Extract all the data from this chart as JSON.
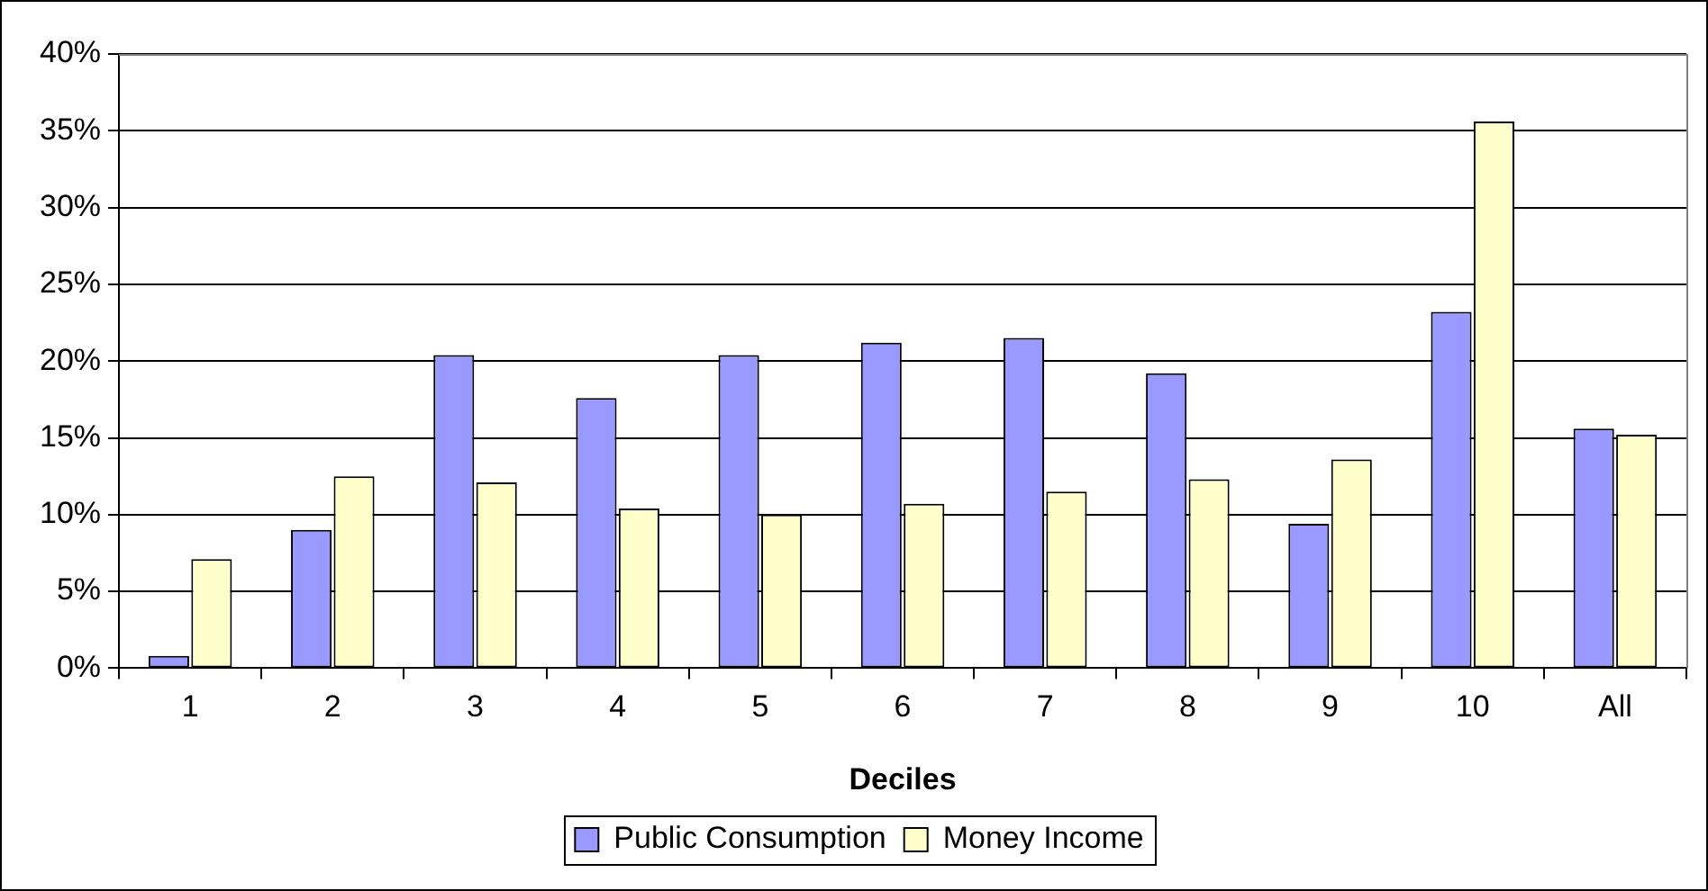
{
  "chart_data": {
    "type": "bar",
    "xlabel": "Deciles",
    "categories": [
      "1",
      "2",
      "3",
      "4",
      "5",
      "6",
      "7",
      "8",
      "9",
      "10",
      "All"
    ],
    "series": [
      {
        "name": "Public Consumption",
        "color": "#9999ff",
        "values": [
          0.8,
          9.0,
          20.4,
          17.6,
          20.4,
          21.2,
          21.5,
          19.2,
          9.4,
          23.2,
          15.6
        ]
      },
      {
        "name": "Money Income",
        "color": "#ffffcc",
        "values": [
          7.1,
          12.5,
          12.1,
          10.4,
          10.0,
          10.7,
          11.5,
          12.3,
          13.6,
          35.6,
          15.2
        ]
      }
    ],
    "ylim": [
      0,
      40
    ],
    "yticks": [
      {
        "value": 0,
        "label": "0%"
      },
      {
        "value": 5,
        "label": "5%"
      },
      {
        "value": 10,
        "label": "10%"
      },
      {
        "value": 15,
        "label": "15%"
      },
      {
        "value": 20,
        "label": "20%"
      },
      {
        "value": 25,
        "label": "25%"
      },
      {
        "value": 30,
        "label": "30%"
      },
      {
        "value": 35,
        "label": "35%"
      },
      {
        "value": 40,
        "label": "40%"
      }
    ],
    "grid": "y",
    "legend": "bottom"
  }
}
